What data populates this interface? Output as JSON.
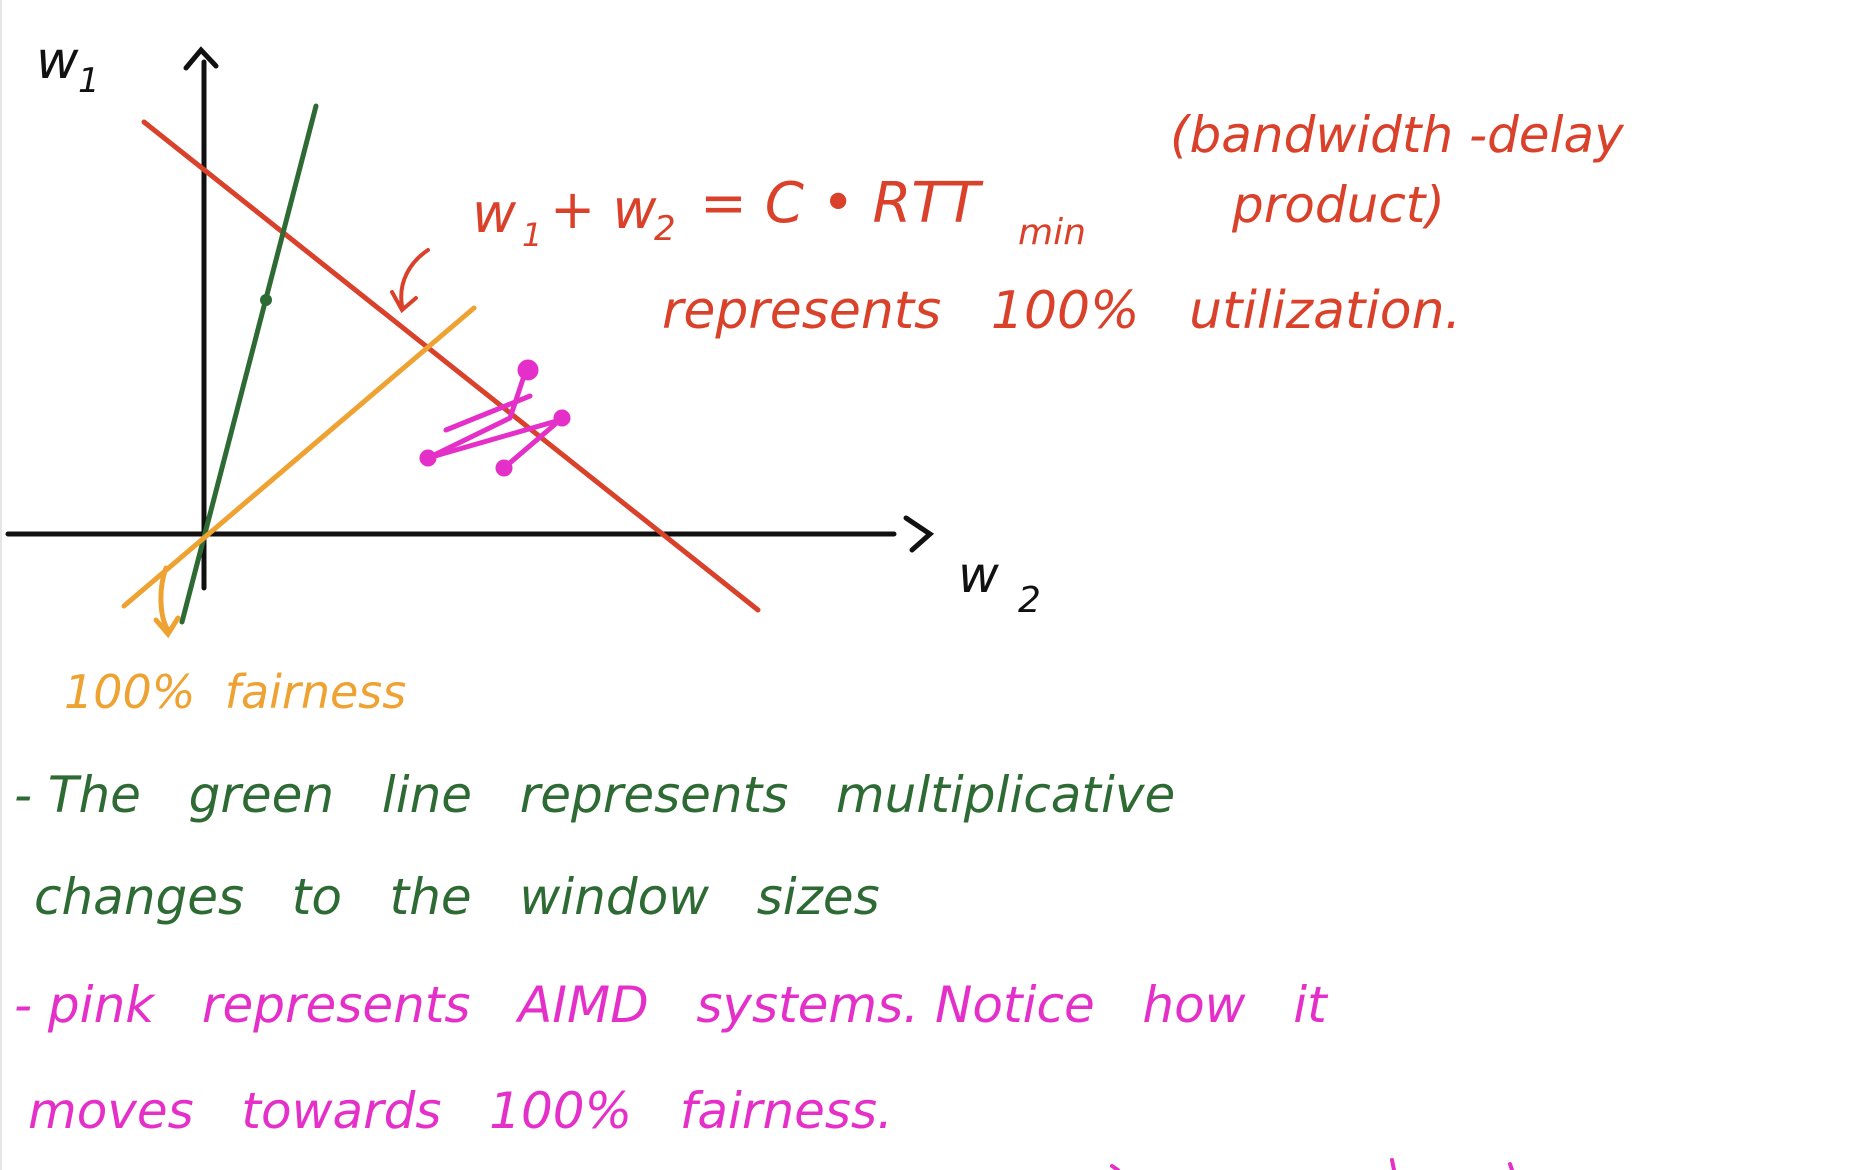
{
  "colors": {
    "axis": "#111111",
    "red": "#d9412b",
    "green": "#2e6b34",
    "orange": "#eea232",
    "pink": "#e430c8",
    "background": "#ffffff"
  },
  "axes": {
    "y_label": "w",
    "y_sub": "1",
    "x_label": "w",
    "x_sub": "2"
  },
  "annotations": {
    "capacity_eq_part1": "w",
    "capacity_eq_sub1": "1",
    "capacity_eq_part2": "+ w",
    "capacity_eq_sub2": "2",
    "capacity_eq_part3": "= C • RTT",
    "capacity_eq_sub3": "min",
    "bdp_line1": "(bandwidth -delay",
    "bdp_line2": "product)",
    "utilization": "represents   100%   utilization.",
    "fairness": "100%  fairness"
  },
  "notes": {
    "green_line1": "- The   green   line   represents   multiplicative",
    "green_line2": "changes   to   the   window   sizes",
    "pink_line1": "- pink   represents   AIMD   systems. Notice   how   it",
    "pink_line2": "moves   towards   100%   fairness."
  }
}
